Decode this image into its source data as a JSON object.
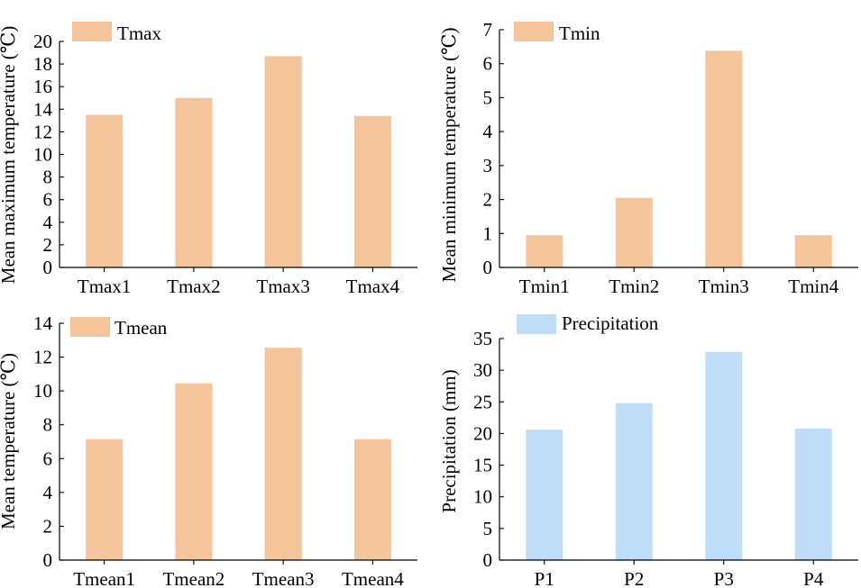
{
  "colors": {
    "warm": "#f6c49b",
    "cool": "#bfdcf8"
  },
  "chart_data": [
    {
      "type": "bar",
      "categories": [
        "Tmax1",
        "Tmax2",
        "Tmax3",
        "Tmax4"
      ],
      "values": [
        13.5,
        15.0,
        18.7,
        13.4
      ],
      "legend": "Tmax",
      "ylabel": "Mean maximum temperature (℃)",
      "ylim": [
        0,
        20
      ],
      "yticks": [
        0,
        2,
        4,
        6,
        8,
        10,
        12,
        14,
        16,
        18,
        20
      ],
      "color": "#f6c49b",
      "legend_position": "top-left"
    },
    {
      "type": "bar",
      "categories": [
        "Tmin1",
        "Tmin2",
        "Tmin3",
        "Tmin4"
      ],
      "values": [
        0.95,
        2.05,
        6.38,
        0.95
      ],
      "legend": "Tmin",
      "ylabel": "Mean minimum temperature (℃)",
      "ylim": [
        0,
        7
      ],
      "yticks": [
        0,
        1,
        2,
        3,
        4,
        5,
        6,
        7
      ],
      "color": "#f6c49b",
      "legend_position": "top-left"
    },
    {
      "type": "bar",
      "categories": [
        "Tmean1",
        "Tmean2",
        "Tmean3",
        "Tmean4"
      ],
      "values": [
        7.15,
        10.45,
        12.55,
        7.15
      ],
      "legend": "Tmean",
      "ylabel": "Mean temperature (℃)",
      "ylim": [
        0,
        14
      ],
      "yticks": [
        0,
        2,
        4,
        6,
        8,
        10,
        12,
        14
      ],
      "color": "#f6c49b",
      "legend_position": "top-left"
    },
    {
      "type": "bar",
      "categories": [
        "P1",
        "P2",
        "P3",
        "P4"
      ],
      "values": [
        20.6,
        24.8,
        32.9,
        20.8
      ],
      "legend": "Precipitation",
      "ylabel": "Precipitation (mm)",
      "ylim": [
        0,
        35
      ],
      "yticks": [
        0,
        5,
        10,
        15,
        20,
        25,
        30,
        35
      ],
      "color": "#bfdcf8",
      "legend_position": "top-left"
    }
  ]
}
